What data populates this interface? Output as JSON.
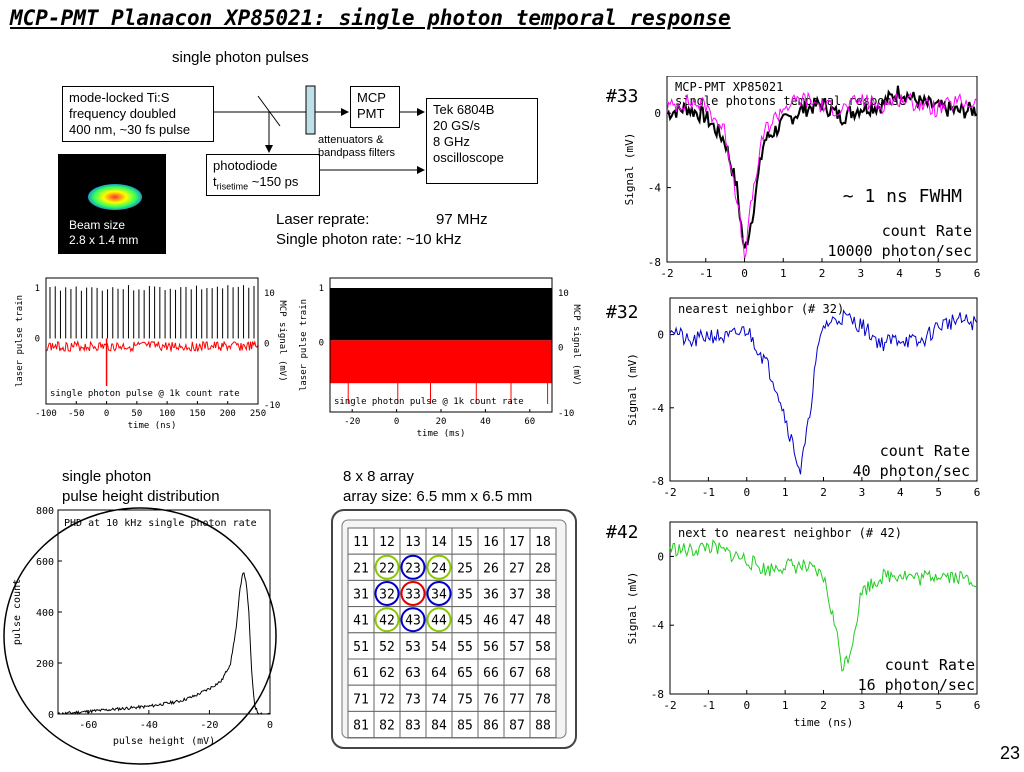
{
  "slide": {
    "title": "MCP-PMT Planacon XP85021: single photon temporal response",
    "page_number": "23"
  },
  "setup": {
    "single_photon_pulses": "single photon pulses",
    "laser_box": [
      "mode-locked Ti:S",
      "frequency doubled",
      "400 nm, ~30 fs pulse"
    ],
    "mcp_box": [
      "MCP",
      "PMT"
    ],
    "tek_box": [
      "Tek 6804B",
      "20 GS/s",
      "8 GHz",
      "oscilloscope"
    ],
    "attenuators": [
      "attenuators &",
      "bandpass filters"
    ],
    "photodiode": "photodiode",
    "risetime_t": "t",
    "risetime_sub": "risetime",
    "risetime_val": "~150 ps",
    "beam_size": [
      "Beam size",
      "2.8 x 1.4 mm"
    ],
    "laser_reprate_label": "Laser reprate:",
    "laser_reprate_val": "97 MHz",
    "single_rate": "Single photon rate: ~10 kHz"
  },
  "phd_caption": [
    "single photon",
    "pulse height distribution"
  ],
  "array_caption": [
    "8 x 8 array",
    "array size: 6.5 mm x 6.5 mm"
  ],
  "array": {
    "rows": [
      [
        "11",
        "12",
        "13",
        "14",
        "15",
        "16",
        "17",
        "18"
      ],
      [
        "21",
        "22",
        "23",
        "24",
        "25",
        "26",
        "27",
        "28"
      ],
      [
        "31",
        "32",
        "33",
        "34",
        "35",
        "36",
        "37",
        "38"
      ],
      [
        "41",
        "42",
        "43",
        "44",
        "45",
        "46",
        "47",
        "48"
      ],
      [
        "51",
        "52",
        "53",
        "54",
        "55",
        "56",
        "57",
        "58"
      ],
      [
        "61",
        "62",
        "63",
        "64",
        "65",
        "66",
        "67",
        "68"
      ],
      [
        "71",
        "72",
        "73",
        "74",
        "75",
        "76",
        "77",
        "78"
      ],
      [
        "81",
        "82",
        "83",
        "84",
        "85",
        "86",
        "87",
        "88"
      ]
    ],
    "red_circle": [
      "33"
    ],
    "blue_circles": [
      "23",
      "32",
      "34",
      "43"
    ],
    "green_circles": [
      "22",
      "24",
      "42",
      "44"
    ],
    "colors": {
      "red": "#e00000",
      "blue": "#0000c8",
      "green": "#88c800"
    }
  },
  "chart_data": [
    {
      "id": "ch33",
      "type": "line",
      "label": "#33",
      "title_lines": [
        "MCP-PMT XP85021",
        "single photons temporal response"
      ],
      "xlabel": "",
      "ylabel": "Signal (mV)",
      "xlim": [
        -2,
        6
      ],
      "ylim": [
        -8,
        2
      ],
      "xticks": [
        "-2",
        "-1",
        "0",
        "1",
        "2",
        "3",
        "4",
        "5",
        "6"
      ],
      "yticks": [
        "0",
        "-4",
        "-8"
      ],
      "annotations": [
        "~ 1 ns FWHM",
        "count Rate",
        "10000 photon/sec"
      ],
      "series": [
        {
          "color": "#000000",
          "x": [
            -2,
            -1.5,
            -1,
            -0.5,
            -0.2,
            0,
            0.2,
            0.5,
            1,
            1.5,
            2,
            2.5,
            3,
            3.5,
            4,
            4.5,
            5,
            5.5,
            6
          ],
          "values": [
            0,
            0.3,
            -0.2,
            -1.5,
            -4,
            -7.5,
            -5.5,
            -1.5,
            -0.5,
            0.2,
            0.5,
            -0.2,
            0.3,
            0.4,
            1.2,
            0.6,
            0.3,
            0.1,
            0.2
          ]
        },
        {
          "color": "#ff00ff",
          "x": [
            -2,
            -1.5,
            -1,
            -0.5,
            -0.2,
            0,
            0.2,
            0.5,
            1,
            1.5,
            2,
            2.5,
            3,
            3.5,
            4,
            4.5,
            5,
            5.5,
            6
          ],
          "values": [
            0.3,
            0.6,
            0.4,
            -1,
            -4.5,
            -7.8,
            -4.5,
            -1,
            0.3,
            0.8,
            0.4,
            0.2,
            0.7,
            0.4,
            0.8,
            0.5,
            0.2,
            0.6,
            0.5
          ]
        }
      ]
    },
    {
      "id": "ch32",
      "type": "line",
      "label": "#32",
      "title_lines": [
        "nearest neighbor (# 32)"
      ],
      "xlabel": "",
      "ylabel": "Signal (mV)",
      "xlim": [
        -2,
        6
      ],
      "ylim": [
        -8,
        2
      ],
      "xticks": [
        "-2",
        "-1",
        "0",
        "1",
        "2",
        "3",
        "4",
        "5",
        "6"
      ],
      "yticks": [
        "0",
        "-4",
        "-8"
      ],
      "annotations": [
        "count Rate",
        "40 photon/sec"
      ],
      "series": [
        {
          "color": "#0000c8",
          "x": [
            -2,
            -1.5,
            -1,
            -0.5,
            0,
            0.5,
            0.8,
            1,
            1.2,
            1.4,
            1.6,
            1.8,
            2,
            2.5,
            3,
            3.5,
            4,
            4.5,
            5,
            5.5,
            6
          ],
          "values": [
            0.5,
            -0.5,
            0,
            -0.2,
            0.3,
            -1.5,
            -3,
            -4.5,
            -6,
            -7.5,
            -5,
            -1.5,
            0.5,
            1,
            0.5,
            -0.5,
            -0.2,
            -0.5,
            0.5,
            0.8,
            0.6
          ]
        }
      ]
    },
    {
      "id": "ch42",
      "type": "line",
      "label": "#42",
      "title_lines": [
        "next to nearest neighbor (# 42)"
      ],
      "xlabel": "time (ns)",
      "ylabel": "Signal (mV)",
      "xlim": [
        -2,
        6
      ],
      "ylim": [
        -8,
        2
      ],
      "xticks": [
        "-2",
        "-1",
        "0",
        "1",
        "2",
        "3",
        "4",
        "5",
        "6"
      ],
      "yticks": [
        "0",
        "-4",
        "-8"
      ],
      "annotations": [
        "count Rate",
        "16 photon/sec"
      ],
      "series": [
        {
          "color": "#22cc22",
          "x": [
            -2,
            -1.5,
            -1,
            -0.5,
            0,
            0.5,
            1,
            1.5,
            2,
            2.3,
            2.5,
            2.7,
            3,
            3.5,
            4,
            4.5,
            5,
            5.5,
            6
          ],
          "values": [
            0.5,
            0.3,
            0.6,
            0.2,
            -0.2,
            -0.8,
            -0.5,
            -0.6,
            -1.2,
            -4,
            -6.5,
            -5.5,
            -2,
            -1.2,
            -1,
            -1.3,
            -1,
            -1.2,
            -1.4
          ]
        }
      ]
    },
    {
      "id": "train1k",
      "type": "line",
      "title_lines": [
        "single photon pulse @ 1k count rate"
      ],
      "xlabel": "time (ns)",
      "ylabel": "laser pulse train",
      "ylabel_right": "MCP signal (mV)",
      "xlim": [
        -100,
        250
      ],
      "xticks": [
        "-100",
        "-50",
        "0",
        "50",
        "100",
        "150",
        "200",
        "250"
      ],
      "yticks_left": [
        "1",
        "0"
      ],
      "yticks_right": [
        "10",
        "0",
        "-10"
      ]
    },
    {
      "id": "train10k",
      "type": "line",
      "title_lines": [
        "single photon pulse @ 1k count rate"
      ],
      "xlabel": "time (ms)",
      "ylabel": "laser pulse train",
      "ylabel_right": "MCP signal (mV)",
      "xlim": [
        -30,
        70
      ],
      "xticks": [
        "-20",
        "0",
        "20",
        "40",
        "60"
      ],
      "yticks_left": [
        "1",
        "0"
      ],
      "yticks_right": [
        "10",
        "0",
        "-10"
      ]
    },
    {
      "id": "phd",
      "type": "line",
      "title_lines": [
        "PHD at 10 kHz single photon rate"
      ],
      "xlabel": "pulse height (mV)",
      "ylabel": "pulse count",
      "xlim": [
        -70,
        0
      ],
      "ylim": [
        0,
        800
      ],
      "xticks": [
        "-60",
        "-40",
        "-20",
        "0"
      ],
      "yticks": [
        "0",
        "200",
        "400",
        "600",
        "800"
      ],
      "series": [
        {
          "color": "#000000",
          "x": [
            -70,
            -60,
            -50,
            -40,
            -30,
            -25,
            -20,
            -16,
            -13,
            -11,
            -10,
            -9,
            -8,
            -7,
            -6,
            -5,
            -4,
            -2,
            0
          ],
          "values": [
            0,
            10,
            20,
            30,
            50,
            70,
            100,
            130,
            200,
            350,
            480,
            560,
            530,
            400,
            150,
            30,
            5,
            0,
            0
          ]
        }
      ]
    }
  ]
}
